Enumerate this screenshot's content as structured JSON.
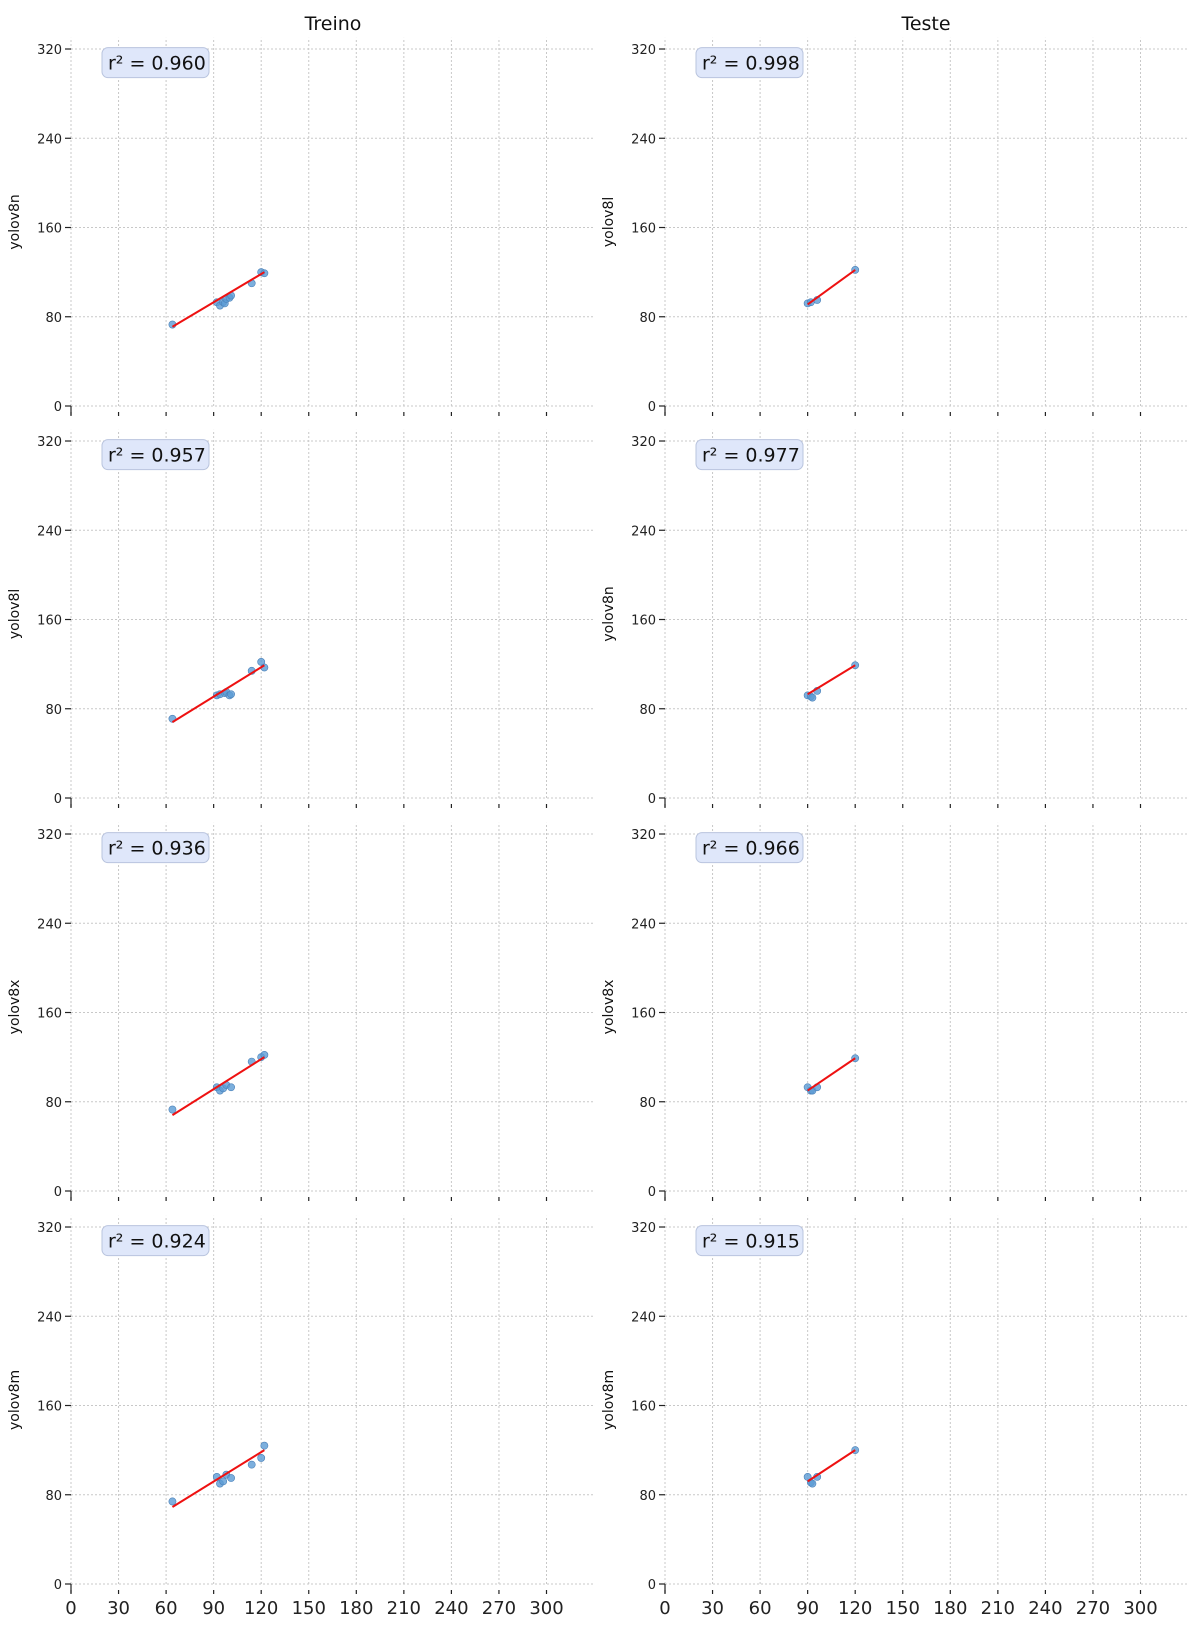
{
  "column_titles": [
    "Treino",
    "Teste"
  ],
  "x_ticks": [
    0,
    30,
    60,
    90,
    120,
    150,
    180,
    210,
    240,
    270,
    300
  ],
  "y_ticks": [
    0,
    80,
    160,
    240,
    320
  ],
  "colors": {
    "points": "#5b9bd5",
    "fit_line": "#ee1111",
    "grid": "#c8c8c8",
    "annotation_bg": "#dfe7fa",
    "annotation_border": "#b9c4de"
  },
  "chart_data": [
    {
      "type": "scatter",
      "row": 0,
      "col": 0,
      "column": "Treino",
      "ylabel": "yolov8n",
      "r2_text": "r² = 0.960",
      "xlim": [
        0,
        330
      ],
      "ylim": [
        0,
        330
      ],
      "points": [
        [
          64,
          73
        ],
        [
          92,
          93
        ],
        [
          94,
          90
        ],
        [
          96,
          93
        ],
        [
          97,
          92
        ],
        [
          98,
          96
        ],
        [
          100,
          97
        ],
        [
          101,
          99
        ],
        [
          114,
          110
        ],
        [
          120,
          120
        ],
        [
          122,
          119
        ]
      ],
      "fit": [
        [
          64,
          71
        ],
        [
          122,
          120
        ]
      ]
    },
    {
      "type": "scatter",
      "row": 0,
      "col": 1,
      "column": "Teste",
      "ylabel": "yolov8l",
      "r2_text": "r² = 0.998",
      "xlim": [
        0,
        330
      ],
      "ylim": [
        0,
        330
      ],
      "points": [
        [
          90,
          92
        ],
        [
          92,
          93
        ],
        [
          96,
          95
        ],
        [
          120,
          122
        ]
      ],
      "fit": [
        [
          90,
          91
        ],
        [
          120,
          122
        ]
      ]
    },
    {
      "type": "scatter",
      "row": 1,
      "col": 0,
      "column": "Treino",
      "ylabel": "yolov8l",
      "r2_text": "r² = 0.957",
      "xlim": [
        0,
        330
      ],
      "ylim": [
        0,
        330
      ],
      "points": [
        [
          64,
          71
        ],
        [
          92,
          92
        ],
        [
          94,
          93
        ],
        [
          97,
          94
        ],
        [
          98,
          95
        ],
        [
          100,
          92
        ],
        [
          101,
          93
        ],
        [
          114,
          114
        ],
        [
          120,
          122
        ],
        [
          122,
          117
        ]
      ],
      "fit": [
        [
          64,
          68
        ],
        [
          122,
          119
        ]
      ]
    },
    {
      "type": "scatter",
      "row": 1,
      "col": 1,
      "column": "Teste",
      "ylabel": "yolov8n",
      "r2_text": "r² = 0.977",
      "xlim": [
        0,
        330
      ],
      "ylim": [
        0,
        330
      ],
      "points": [
        [
          90,
          92
        ],
        [
          92,
          91
        ],
        [
          93,
          90
        ],
        [
          96,
          96
        ],
        [
          120,
          119
        ]
      ],
      "fit": [
        [
          90,
          93
        ],
        [
          120,
          119
        ]
      ]
    },
    {
      "type": "scatter",
      "row": 2,
      "col": 0,
      "column": "Treino",
      "ylabel": "yolov8x",
      "r2_text": "r² = 0.936",
      "xlim": [
        0,
        330
      ],
      "ylim": [
        0,
        330
      ],
      "points": [
        [
          64,
          73
        ],
        [
          92,
          93
        ],
        [
          94,
          90
        ],
        [
          96,
          92
        ],
        [
          98,
          95
        ],
        [
          101,
          93
        ],
        [
          114,
          116
        ],
        [
          120,
          120
        ],
        [
          122,
          122
        ]
      ],
      "fit": [
        [
          64,
          68
        ],
        [
          122,
          120
        ]
      ]
    },
    {
      "type": "scatter",
      "row": 2,
      "col": 1,
      "column": "Teste",
      "ylabel": "yolov8x",
      "r2_text": "r² = 0.966",
      "xlim": [
        0,
        330
      ],
      "ylim": [
        0,
        330
      ],
      "points": [
        [
          90,
          93
        ],
        [
          92,
          90
        ],
        [
          93,
          90
        ],
        [
          96,
          93
        ],
        [
          120,
          119
        ]
      ],
      "fit": [
        [
          90,
          90
        ],
        [
          120,
          119
        ]
      ]
    },
    {
      "type": "scatter",
      "row": 3,
      "col": 0,
      "column": "Treino",
      "ylabel": "yolov8m",
      "r2_text": "r² = 0.924",
      "xlim": [
        0,
        330
      ],
      "ylim": [
        0,
        330
      ],
      "points": [
        [
          64,
          74
        ],
        [
          92,
          96
        ],
        [
          94,
          90
        ],
        [
          96,
          92
        ],
        [
          98,
          98
        ],
        [
          101,
          95
        ],
        [
          114,
          107
        ],
        [
          120,
          113
        ],
        [
          122,
          124
        ]
      ],
      "fit": [
        [
          64,
          69
        ],
        [
          122,
          120
        ]
      ]
    },
    {
      "type": "scatter",
      "row": 3,
      "col": 1,
      "column": "Teste",
      "ylabel": "yolov8m",
      "r2_text": "r² = 0.915",
      "xlim": [
        0,
        330
      ],
      "ylim": [
        0,
        330
      ],
      "points": [
        [
          90,
          96
        ],
        [
          92,
          91
        ],
        [
          93,
          90
        ],
        [
          96,
          96
        ],
        [
          120,
          120
        ]
      ],
      "fit": [
        [
          90,
          92
        ],
        [
          120,
          120
        ]
      ]
    }
  ]
}
